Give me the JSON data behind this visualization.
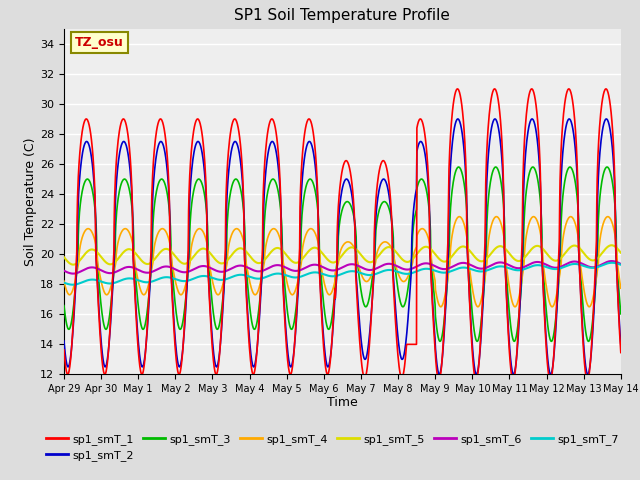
{
  "title": "SP1 Soil Temperature Profile",
  "xlabel": "Time",
  "ylabel": "Soil Temperature (C)",
  "ylim": [
    12,
    35
  ],
  "yticks": [
    12,
    14,
    16,
    18,
    20,
    22,
    24,
    26,
    28,
    30,
    32,
    34
  ],
  "series_colors": {
    "sp1_smT_1": "#ff0000",
    "sp1_smT_2": "#0000cc",
    "sp1_smT_3": "#00bb00",
    "sp1_smT_4": "#ffaa00",
    "sp1_smT_5": "#dddd00",
    "sp1_smT_6": "#bb00bb",
    "sp1_smT_7": "#00cccc"
  },
  "tz_label": "TZ_osu",
  "tz_box_color": "#ffffcc",
  "tz_text_color": "#cc0000",
  "background_color": "#dddddd",
  "plot_bg_color": "#eeeeee",
  "grid_color": "#ffffff",
  "days": 15,
  "points_per_day": 96
}
